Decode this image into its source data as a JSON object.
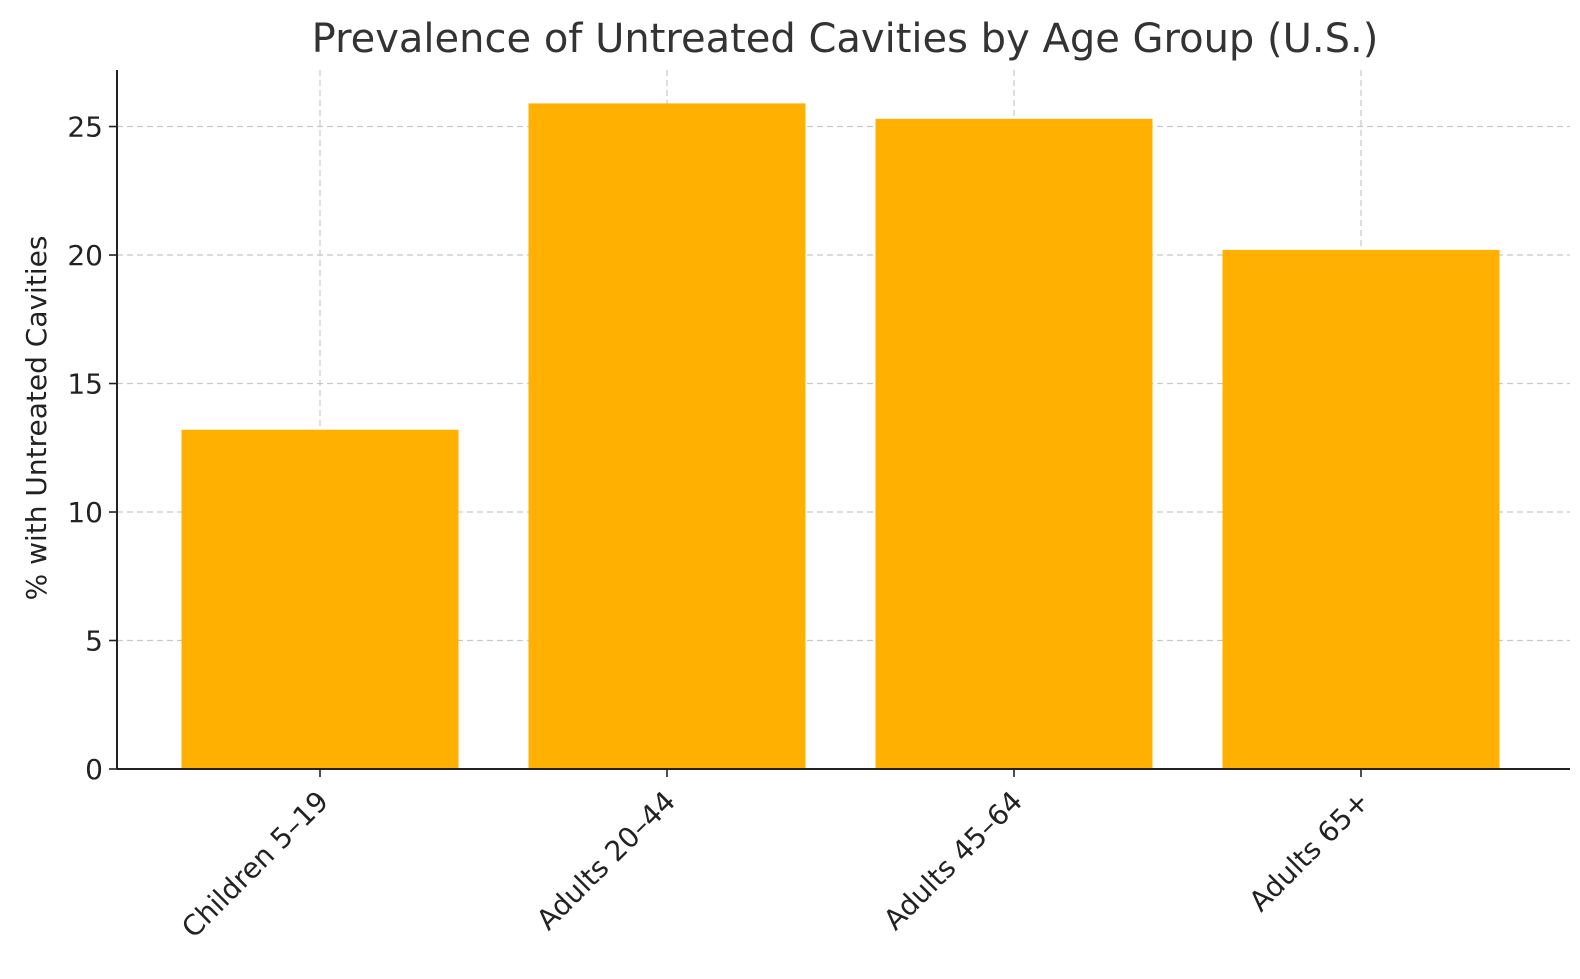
{
  "chart_data": {
    "type": "bar",
    "title": "Prevalence of Untreated Cavities by Age Group (U.S.)",
    "xlabel": "",
    "ylabel": "% with Untreated Cavities",
    "categories": [
      "Children 5–19",
      "Adults 20–44",
      "Adults 45–64",
      "Adults 65+"
    ],
    "values": [
      13.2,
      25.9,
      25.3,
      20.2
    ],
    "ylim": [
      0,
      27.2
    ],
    "yticks": [
      0,
      5,
      10,
      15,
      20,
      25
    ],
    "grid": true,
    "bar_color": "#FFB000"
  }
}
